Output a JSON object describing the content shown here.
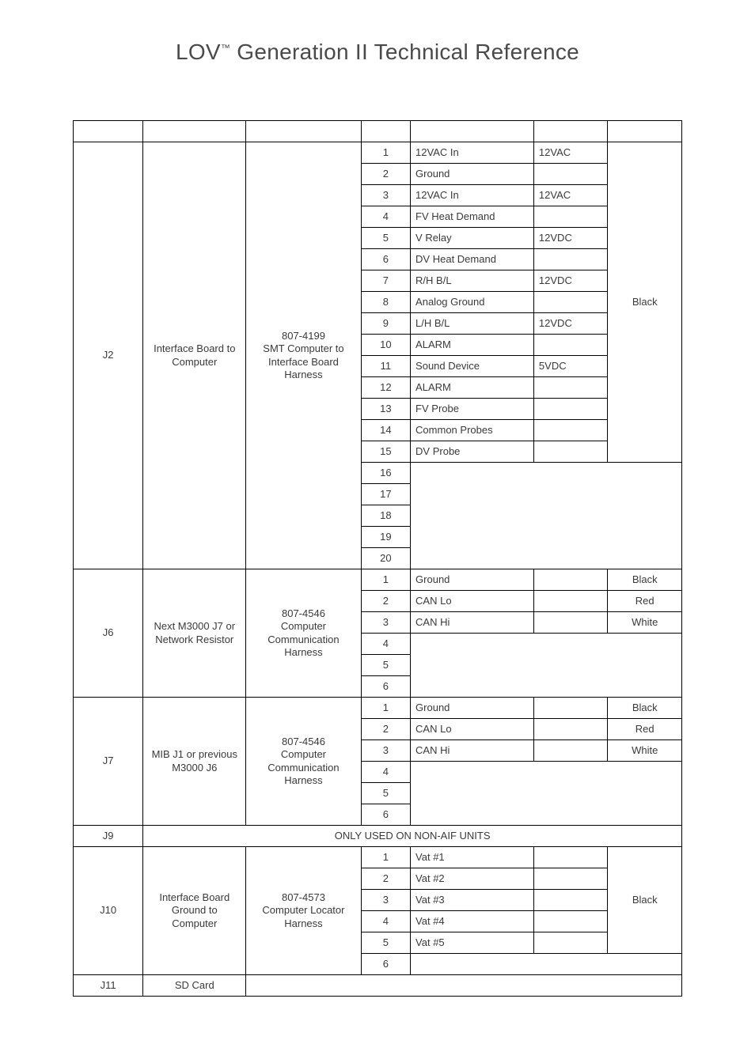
{
  "title_pre": "LOV",
  "title_tm": "™",
  "title_post": " Generation II Technical Reference",
  "j2": {
    "conn": "J2",
    "from": "Interface Board to Computer",
    "harness": "807-4199\nSMT Computer to Interface Board Harness"
  },
  "j2_color": "Black",
  "j2r": [
    {
      "pin": "1",
      "fn": "12VAC In",
      "v": "12VAC"
    },
    {
      "pin": "2",
      "fn": "Ground",
      "v": ""
    },
    {
      "pin": "3",
      "fn": "12VAC In",
      "v": "12VAC"
    },
    {
      "pin": "4",
      "fn": "FV Heat Demand",
      "v": ""
    },
    {
      "pin": "5",
      "fn": "V Relay",
      "v": "12VDC"
    },
    {
      "pin": "6",
      "fn": "DV Heat Demand",
      "v": ""
    },
    {
      "pin": "7",
      "fn": "R/H B/L",
      "v": "12VDC"
    },
    {
      "pin": "8",
      "fn": "Analog Ground",
      "v": ""
    },
    {
      "pin": "9",
      "fn": "L/H B/L",
      "v": "12VDC"
    },
    {
      "pin": "10",
      "fn": "ALARM",
      "v": ""
    },
    {
      "pin": "11",
      "fn": "Sound Device",
      "v": "5VDC"
    },
    {
      "pin": "12",
      "fn": "ALARM",
      "v": ""
    },
    {
      "pin": "13",
      "fn": "FV Probe",
      "v": ""
    },
    {
      "pin": "14",
      "fn": "Common Probes",
      "v": ""
    },
    {
      "pin": "15",
      "fn": "DV Probe",
      "v": ""
    },
    {
      "pin": "16"
    },
    {
      "pin": "17"
    },
    {
      "pin": "18"
    },
    {
      "pin": "19"
    },
    {
      "pin": "20"
    }
  ],
  "j6": {
    "conn": "J6",
    "from": "Next M3000 J7 or Network Resistor",
    "harness": "807-4546\nComputer Communication Harness"
  },
  "j6r": [
    {
      "pin": "1",
      "fn": "Ground",
      "v": "",
      "c": "Black"
    },
    {
      "pin": "2",
      "fn": "CAN Lo",
      "v": "",
      "c": "Red"
    },
    {
      "pin": "3",
      "fn": "CAN Hi",
      "v": "",
      "c": "White"
    },
    {
      "pin": "4"
    },
    {
      "pin": "5"
    },
    {
      "pin": "6"
    }
  ],
  "j7": {
    "conn": "J7",
    "from": "MIB J1 or previous M3000 J6",
    "harness": "807-4546\nComputer Communication Harness"
  },
  "j7r": [
    {
      "pin": "1",
      "fn": "Ground",
      "v": "",
      "c": "Black"
    },
    {
      "pin": "2",
      "fn": "CAN Lo",
      "v": "",
      "c": "Red"
    },
    {
      "pin": "3",
      "fn": "CAN Hi",
      "v": "",
      "c": "White"
    },
    {
      "pin": "4"
    },
    {
      "pin": "5"
    },
    {
      "pin": "6"
    }
  ],
  "j9": {
    "conn": "J9",
    "note": "ONLY USED ON NON-AIF UNITS"
  },
  "j10": {
    "conn": "J10",
    "from": "Interface Board Ground to Computer",
    "harness": "807-4573\nComputer Locator Harness"
  },
  "j10_color": "Black",
  "j10r": [
    {
      "pin": "1",
      "fn": "Vat #1",
      "v": ""
    },
    {
      "pin": "2",
      "fn": "Vat #2",
      "v": ""
    },
    {
      "pin": "3",
      "fn": "Vat #3",
      "v": ""
    },
    {
      "pin": "4",
      "fn": "Vat #4",
      "v": ""
    },
    {
      "pin": "5",
      "fn": "Vat #5",
      "v": ""
    },
    {
      "pin": "6"
    }
  ],
  "j11": {
    "conn": "J11",
    "from": "SD Card"
  }
}
